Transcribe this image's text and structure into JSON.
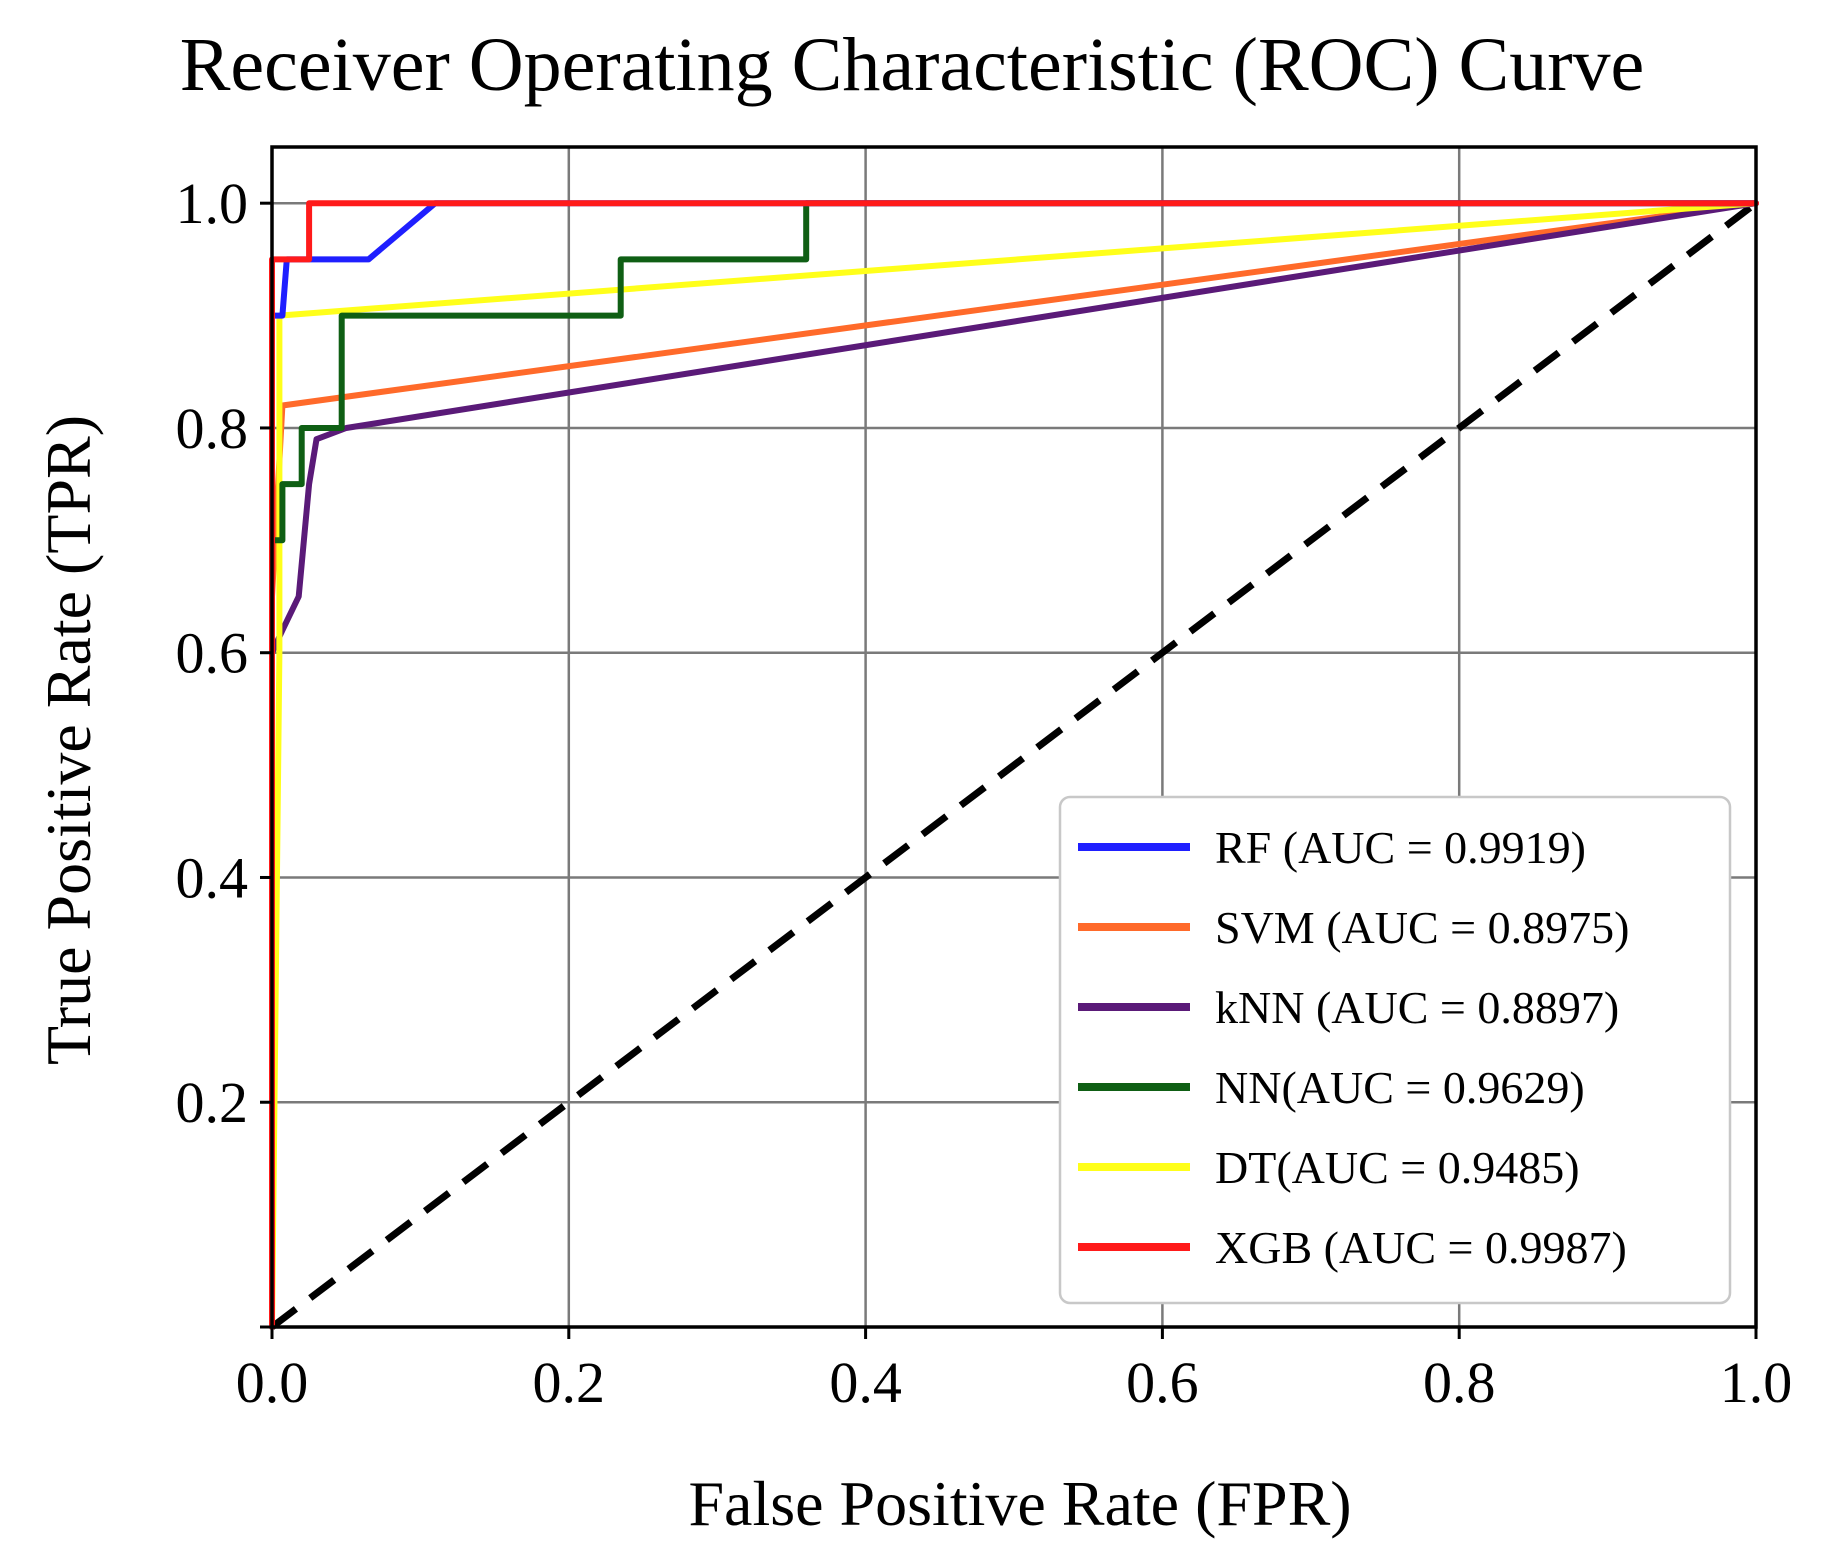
{
  "chart_data": {
    "type": "line",
    "title": "Receiver Operating Characteristic (ROC) Curve",
    "xlabel": "False Positive Rate (FPR)",
    "ylabel": "True Positive Rate (TPR)",
    "xlim": [
      0,
      1
    ],
    "ylim": [
      0,
      1.05
    ],
    "xticks": [
      "0.0",
      "0.2",
      "0.4",
      "0.6",
      "0.8",
      "1.0"
    ],
    "yticks": [
      "0.2",
      "0.4",
      "0.6",
      "0.8",
      "1.0"
    ],
    "grid": true,
    "legend_position": "lower-right",
    "diagonal": {
      "x": [
        0,
        1
      ],
      "y": [
        0,
        1
      ],
      "color": "#000000",
      "style": "dashed"
    },
    "series": [
      {
        "name": "RF (AUC = 0.9919)",
        "color": "#1f1fff",
        "x": [
          0,
          0,
          0.007,
          0.01,
          0.065,
          0.11,
          1.0
        ],
        "y": [
          0,
          0.9,
          0.9,
          0.95,
          0.95,
          1.0,
          1.0
        ]
      },
      {
        "name": "SVM (AUC = 0.8975)",
        "color": "#ff6a2a",
        "x": [
          0,
          0,
          0.007,
          1.0
        ],
        "y": [
          0,
          0.65,
          0.82,
          1.0
        ]
      },
      {
        "name": "kNN (AUC = 0.8897)",
        "color": "#5a1a78",
        "x": [
          0,
          0,
          0.007,
          0.018,
          0.025,
          0.03,
          0.05,
          1.0
        ],
        "y": [
          0,
          0.6,
          0.62,
          0.65,
          0.75,
          0.79,
          0.8,
          1.0
        ]
      },
      {
        "name": "NN(AUC = 0.9629)",
        "color": "#0f5f14",
        "x": [
          0,
          0.007,
          0.007,
          0.02,
          0.02,
          0.025,
          0.025,
          0.047,
          0.047,
          0.235,
          0.235,
          0.36,
          0.36,
          1.0
        ],
        "y": [
          0.7,
          0.7,
          0.75,
          0.75,
          0.8,
          0.8,
          0.8,
          0.8,
          0.9,
          0.9,
          0.95,
          0.95,
          1.0,
          1.0
        ]
      },
      {
        "name": "DT(AUC = 0.9485)",
        "color": "#ffff1a",
        "x": [
          0,
          0.005,
          0.005,
          1.0
        ],
        "y": [
          0,
          0.6,
          0.9,
          1.0
        ]
      },
      {
        "name": "XGB (AUC = 0.9987)",
        "color": "#ff1a1a",
        "x": [
          0,
          0,
          0.025,
          0.025,
          1.0
        ],
        "y": [
          0,
          0.95,
          0.95,
          1.0,
          1.0
        ]
      }
    ]
  }
}
